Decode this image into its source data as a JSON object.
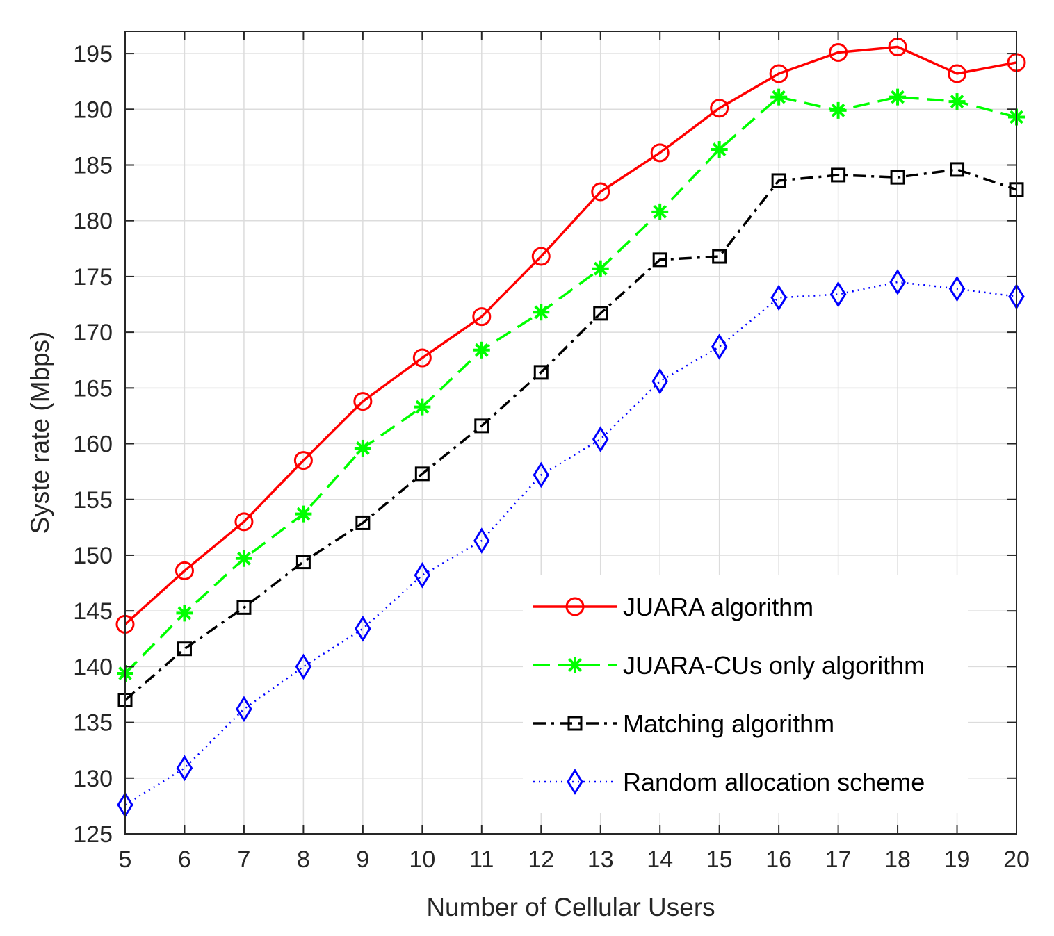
{
  "chart_data": {
    "type": "line",
    "title": "",
    "xlabel": "Number of Cellular Users",
    "ylabel": "Syste rate (Mbps)",
    "xlim": [
      5,
      20
    ],
    "ylim": [
      125,
      197
    ],
    "xticks": [
      5,
      6,
      7,
      8,
      9,
      10,
      11,
      12,
      13,
      14,
      15,
      16,
      17,
      18,
      19,
      20
    ],
    "yticks": [
      125,
      130,
      135,
      140,
      145,
      150,
      155,
      160,
      165,
      170,
      175,
      180,
      185,
      190,
      195
    ],
    "grid": true,
    "legend_position": "bottom-right",
    "x": [
      5,
      6,
      7,
      8,
      9,
      10,
      11,
      12,
      13,
      14,
      15,
      16,
      17,
      18,
      19,
      20
    ],
    "series": [
      {
        "name": "JUARA algorithm",
        "color": "#ff0000",
        "line_style": "solid",
        "marker": "circle",
        "values": [
          143.8,
          148.6,
          153.0,
          158.5,
          163.8,
          167.7,
          171.4,
          176.8,
          182.6,
          186.1,
          190.1,
          193.2,
          195.1,
          195.6,
          193.2,
          194.2
        ]
      },
      {
        "name": "JUARA-CUs only algorithm",
        "color": "#00ff00",
        "line_style": "dashed",
        "marker": "asterisk",
        "values": [
          139.4,
          144.8,
          149.7,
          153.7,
          159.6,
          163.3,
          168.4,
          171.8,
          175.7,
          180.8,
          186.4,
          191.1,
          189.9,
          191.1,
          190.7,
          189.3
        ]
      },
      {
        "name": "Matching algorithm",
        "color": "#000000",
        "line_style": "dashdot",
        "marker": "square",
        "values": [
          137.0,
          141.6,
          145.3,
          149.4,
          152.9,
          157.3,
          161.6,
          166.4,
          171.7,
          176.5,
          176.8,
          183.6,
          184.1,
          183.9,
          184.6,
          182.8
        ]
      },
      {
        "name": "Random allocation scheme",
        "color": "#0000ff",
        "line_style": "dotted",
        "marker": "diamond",
        "values": [
          127.6,
          130.9,
          136.2,
          140.0,
          143.4,
          148.2,
          151.3,
          157.2,
          160.4,
          165.6,
          168.7,
          173.1,
          173.4,
          174.5,
          173.9,
          173.2
        ]
      }
    ]
  }
}
